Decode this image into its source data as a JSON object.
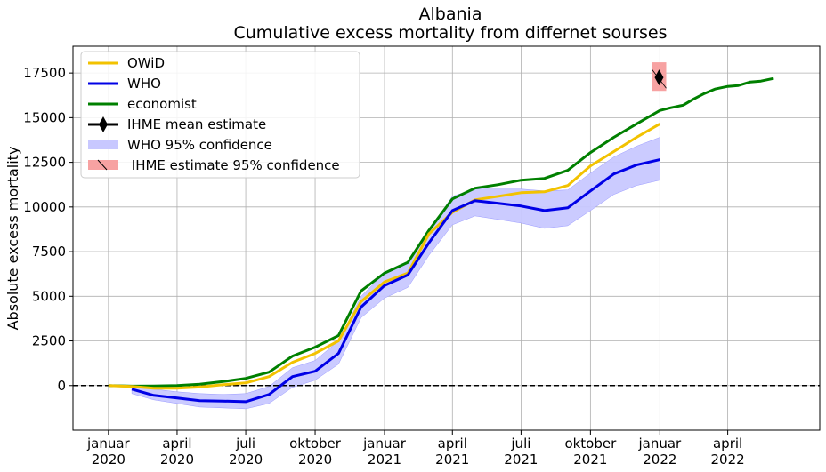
{
  "chart_data": {
    "type": "line",
    "title": "Albania",
    "subtitle": "Cumulative excess mortality from differnet sourses",
    "xlabel": "",
    "ylabel": "Absolute excess mortality",
    "xlim": [
      "2019-11-15",
      "2022-08-01"
    ],
    "ylim": [
      -2500,
      19000
    ],
    "grid": true,
    "legend_position": "top-left",
    "x_ticks": [
      {
        "date": "2020-01-01",
        "line1": "januar",
        "line2": "2020"
      },
      {
        "date": "2020-04-01",
        "line1": "april",
        "line2": "2020"
      },
      {
        "date": "2020-07-01",
        "line1": "juli",
        "line2": "2020"
      },
      {
        "date": "2020-10-01",
        "line1": "oktober",
        "line2": "2020"
      },
      {
        "date": "2021-01-01",
        "line1": "januar",
        "line2": "2021"
      },
      {
        "date": "2021-04-01",
        "line1": "april",
        "line2": "2021"
      },
      {
        "date": "2021-07-01",
        "line1": "juli",
        "line2": "2021"
      },
      {
        "date": "2021-10-01",
        "line1": "oktober",
        "line2": "2021"
      },
      {
        "date": "2022-01-01",
        "line1": "januar",
        "line2": "2022"
      },
      {
        "date": "2022-04-01",
        "line1": "april",
        "line2": "2022"
      }
    ],
    "y_ticks": [
      "0",
      "2500",
      "5000",
      "7500",
      "10000",
      "12500",
      "15000",
      "17500"
    ],
    "y_tick_values": [
      0,
      2500,
      5000,
      7500,
      10000,
      12500,
      15000,
      17500
    ],
    "reference_line": {
      "y": 0,
      "style": "dashed",
      "color": "#000000"
    },
    "series": [
      {
        "name": "OWiD",
        "color": "#f2c200",
        "x": [
          "2020-01-01",
          "2020-02-01",
          "2020-03-01",
          "2020-04-01",
          "2020-05-01",
          "2020-06-01",
          "2020-07-01",
          "2020-08-01",
          "2020-09-01",
          "2020-10-01",
          "2020-11-01",
          "2020-12-01",
          "2021-01-01",
          "2021-02-01",
          "2021-03-01",
          "2021-04-01",
          "2021-05-01",
          "2021-06-01",
          "2021-07-01",
          "2021-08-01",
          "2021-09-01",
          "2021-10-01",
          "2021-11-01",
          "2021-12-01",
          "2022-01-01"
        ],
        "values": [
          0,
          -50,
          -150,
          -150,
          -80,
          50,
          150,
          500,
          1300,
          1800,
          2500,
          4700,
          5800,
          6300,
          8500,
          9700,
          10400,
          10600,
          10800,
          10850,
          11200,
          12300,
          13100,
          13900,
          14650
        ]
      },
      {
        "name": "WHO",
        "color": "#0000e6",
        "x": [
          "2020-02-01",
          "2020-03-01",
          "2020-04-01",
          "2020-05-01",
          "2020-06-01",
          "2020-07-01",
          "2020-08-01",
          "2020-09-01",
          "2020-10-01",
          "2020-11-01",
          "2020-12-01",
          "2021-01-01",
          "2021-02-01",
          "2021-03-01",
          "2021-04-01",
          "2021-05-01",
          "2021-06-01",
          "2021-07-01",
          "2021-08-01",
          "2021-09-01",
          "2021-10-01",
          "2021-11-01",
          "2021-12-01",
          "2022-01-01"
        ],
        "values": [
          -200,
          -550,
          -700,
          -850,
          -870,
          -900,
          -500,
          500,
          800,
          1800,
          4400,
          5600,
          6200,
          8000,
          9800,
          10350,
          10200,
          10050,
          9800,
          9950,
          10900,
          11850,
          12350,
          12650
        ]
      },
      {
        "name": "economist",
        "color": "#008000",
        "x": [
          "2020-01-01",
          "2020-02-01",
          "2020-03-01",
          "2020-04-01",
          "2020-05-01",
          "2020-06-01",
          "2020-07-01",
          "2020-08-01",
          "2020-09-01",
          "2020-10-01",
          "2020-11-01",
          "2020-12-01",
          "2021-01-01",
          "2021-02-01",
          "2021-03-01",
          "2021-04-01",
          "2021-05-01",
          "2021-06-01",
          "2021-07-01",
          "2021-08-01",
          "2021-09-01",
          "2021-10-01",
          "2021-11-01",
          "2021-12-01",
          "2022-01-01",
          "2022-01-15",
          "2022-02-01",
          "2022-02-15",
          "2022-03-01",
          "2022-03-15",
          "2022-04-01",
          "2022-04-15",
          "2022-05-01",
          "2022-05-15",
          "2022-06-01"
        ],
        "values": [
          0,
          -30,
          -20,
          0,
          80,
          220,
          400,
          750,
          1650,
          2150,
          2800,
          5300,
          6300,
          6900,
          8700,
          10450,
          11050,
          11250,
          11500,
          11600,
          12050,
          13050,
          13900,
          14650,
          15400,
          15550,
          15700,
          16050,
          16350,
          16600,
          16750,
          16800,
          17000,
          17050,
          17200
        ]
      }
    ],
    "who_ci": {
      "name": "WHO 95% confidence",
      "color": "#c8c8ff",
      "x": [
        "2020-02-01",
        "2020-03-01",
        "2020-04-01",
        "2020-05-01",
        "2020-06-01",
        "2020-07-01",
        "2020-08-01",
        "2020-09-01",
        "2020-10-01",
        "2020-11-01",
        "2020-12-01",
        "2021-01-01",
        "2021-02-01",
        "2021-03-01",
        "2021-04-01",
        "2021-05-01",
        "2021-06-01",
        "2021-07-01",
        "2021-08-01",
        "2021-09-01",
        "2021-10-01",
        "2021-11-01",
        "2021-12-01",
        "2022-01-01"
      ],
      "lower": [
        -450,
        -800,
        -1000,
        -1200,
        -1250,
        -1300,
        -1000,
        -100,
        300,
        1200,
        3800,
        4900,
        5500,
        7300,
        9000,
        9500,
        9300,
        9100,
        8800,
        8950,
        9800,
        10700,
        11200,
        11500
      ],
      "upper": [
        0,
        -200,
        -350,
        -450,
        -500,
        -450,
        -50,
        1000,
        1400,
        2500,
        5000,
        6300,
        6900,
        8700,
        10600,
        11000,
        11000,
        11000,
        10900,
        10950,
        11900,
        12800,
        13400,
        13900
      ]
    },
    "ihme": {
      "mean_label": "IHME mean estimate",
      "ci_label": " IHME estimate 95% confidence",
      "date": "2021-12-31",
      "mean": 17250,
      "lower": 16500,
      "upper": 18100,
      "marker_color": "#000000",
      "ci_color": "#f7a2a2"
    }
  }
}
